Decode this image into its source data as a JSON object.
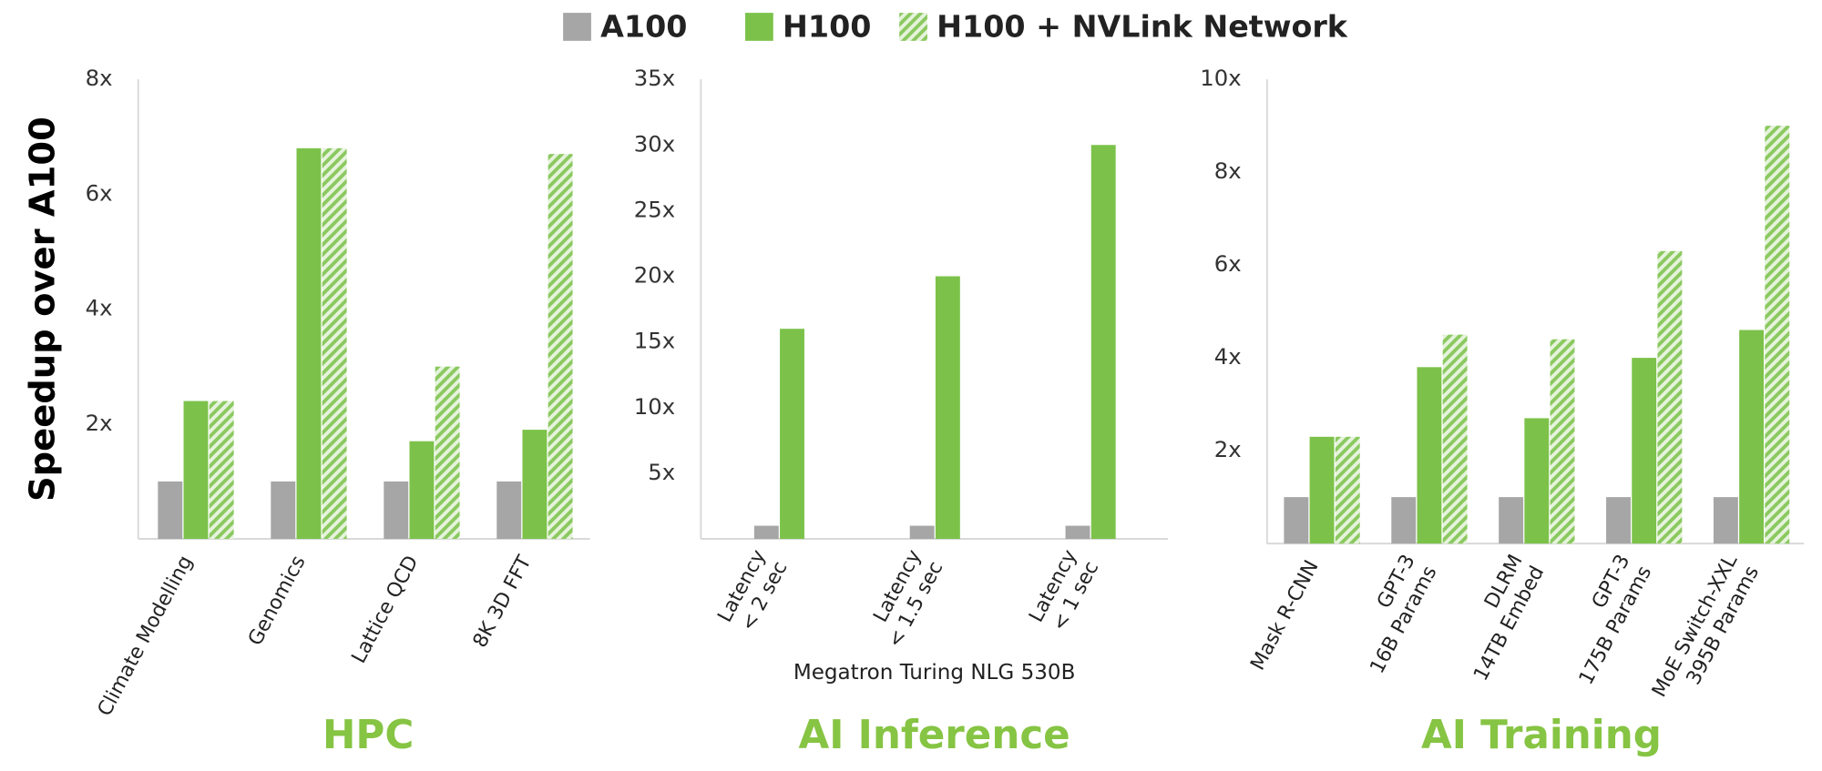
{
  "chart_data": [
    {
      "type": "bar",
      "title": "HPC",
      "ylabel": "Speedup over A100",
      "categories": [
        "Climate Modelling",
        "Genomics",
        "Lattice QCD",
        "8K 3D FFT"
      ],
      "series": [
        {
          "name": "A100",
          "color": "#a6a6a6",
          "values": [
            1,
            1,
            1,
            1
          ]
        },
        {
          "name": "H100",
          "color": "#7cc24a",
          "values": [
            2.4,
            6.8,
            1.7,
            1.9
          ]
        },
        {
          "name": "H100 + NVLink Network",
          "color": "#7cc24a",
          "pattern": "hatch",
          "values": [
            2.4,
            6.8,
            3.0,
            6.7
          ]
        }
      ],
      "ylim": [
        0,
        8
      ],
      "yticks": [
        {
          "value": 2,
          "label": "2x"
        },
        {
          "value": 4,
          "label": "4x"
        },
        {
          "value": 6,
          "label": "6x"
        },
        {
          "value": 8,
          "label": "8x"
        }
      ],
      "grid": false
    },
    {
      "type": "bar",
      "title": "AI Inference",
      "xlabel": "Megatron Turing NLG 530B",
      "categories": [
        [
          "Latency",
          "< 2 sec"
        ],
        [
          "Latency",
          "< 1.5 sec"
        ],
        [
          "Latency",
          "< 1 sec"
        ]
      ],
      "series": [
        {
          "name": "A100",
          "color": "#a6a6a6",
          "values": [
            1,
            1,
            1
          ]
        },
        {
          "name": "H100",
          "color": "#7cc24a",
          "values": [
            16,
            20,
            30
          ]
        }
      ],
      "ylim": [
        0,
        35
      ],
      "yticks": [
        {
          "value": 5,
          "label": "5x"
        },
        {
          "value": 10,
          "label": "10x"
        },
        {
          "value": 15,
          "label": "15x"
        },
        {
          "value": 20,
          "label": "20x"
        },
        {
          "value": 25,
          "label": "25x"
        },
        {
          "value": 30,
          "label": "30x"
        },
        {
          "value": 35,
          "label": "35x"
        }
      ],
      "grid": false
    },
    {
      "type": "bar",
      "title": "AI Training",
      "categories": [
        [
          "Mask R-CNN"
        ],
        [
          "GPT-3",
          "16B Params"
        ],
        [
          "DLRM",
          "14TB Embed"
        ],
        [
          "GPT-3",
          "175B Params"
        ],
        [
          "MoE Switch-XXL",
          "395B Params"
        ]
      ],
      "series": [
        {
          "name": "A100",
          "color": "#a6a6a6",
          "values": [
            1,
            1,
            1,
            1,
            1
          ]
        },
        {
          "name": "H100",
          "color": "#7cc24a",
          "values": [
            2.3,
            3.8,
            2.7,
            4.0,
            4.6
          ]
        },
        {
          "name": "H100 + NVLink Network",
          "color": "#7cc24a",
          "pattern": "hatch",
          "values": [
            2.3,
            4.5,
            4.4,
            6.3,
            9.0
          ]
        }
      ],
      "ylim": [
        0,
        10
      ],
      "yticks": [
        {
          "value": 2,
          "label": "2x"
        },
        {
          "value": 4,
          "label": "4x"
        },
        {
          "value": 6,
          "label": "6x"
        },
        {
          "value": 8,
          "label": "8x"
        },
        {
          "value": 10,
          "label": "10x"
        }
      ],
      "grid": false
    }
  ]
}
